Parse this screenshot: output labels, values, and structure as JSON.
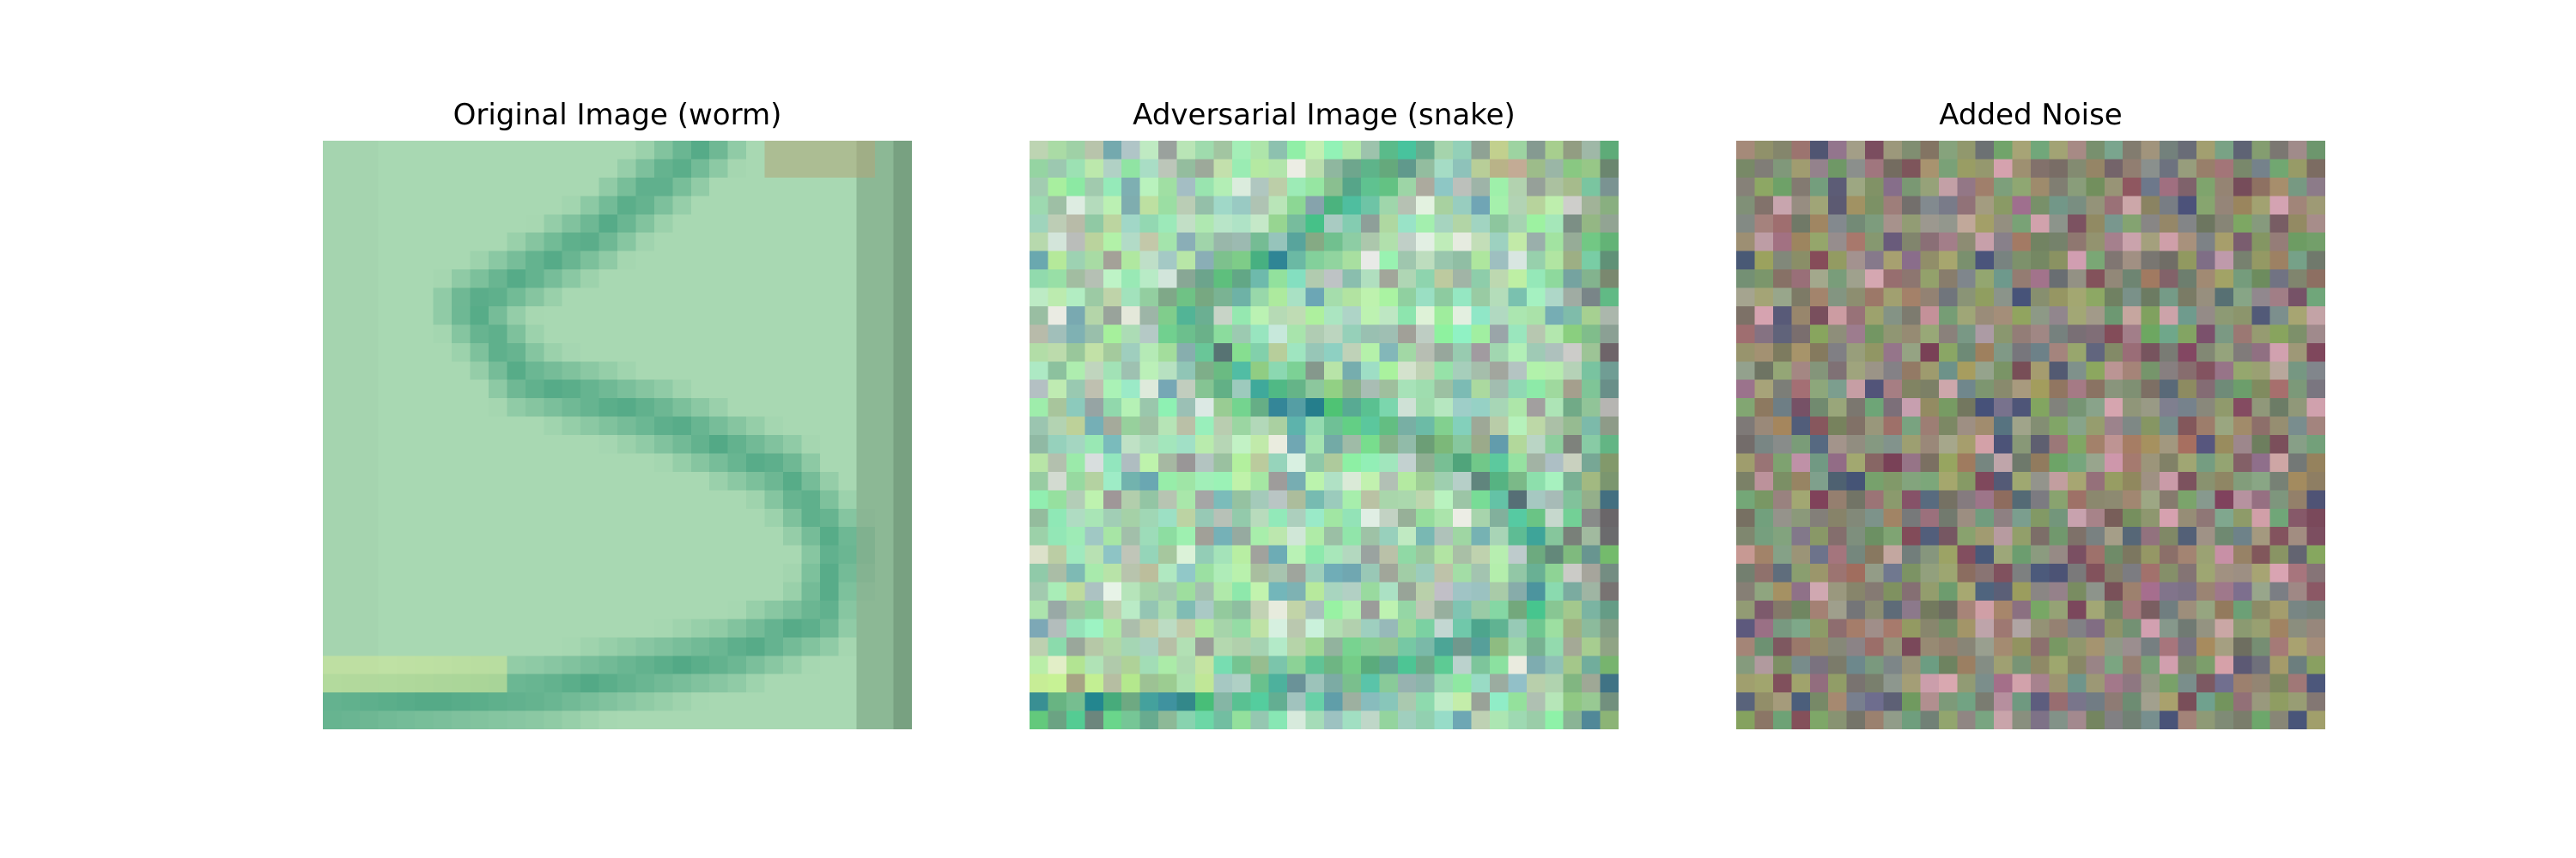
{
  "panels": [
    {
      "title": "Original Image (worm)"
    },
    {
      "title": "Adversarial Image (snake)"
    },
    {
      "title": "Added Noise"
    }
  ],
  "palette": {
    "background_mint": "#a8d8b2",
    "stroke_green": "#4fa784",
    "right_edge_grey_green": "#6f9778",
    "yellow_green_streak": "#cfe79a",
    "top_right_tan": "#b0a77a",
    "noise_mean_grey": "#8a8a76",
    "noise_magenta": "#7a3a55",
    "noise_navy": "#3f4a78",
    "noise_olive": "#a9a872",
    "noise_pink": "#e0a8b8"
  }
}
